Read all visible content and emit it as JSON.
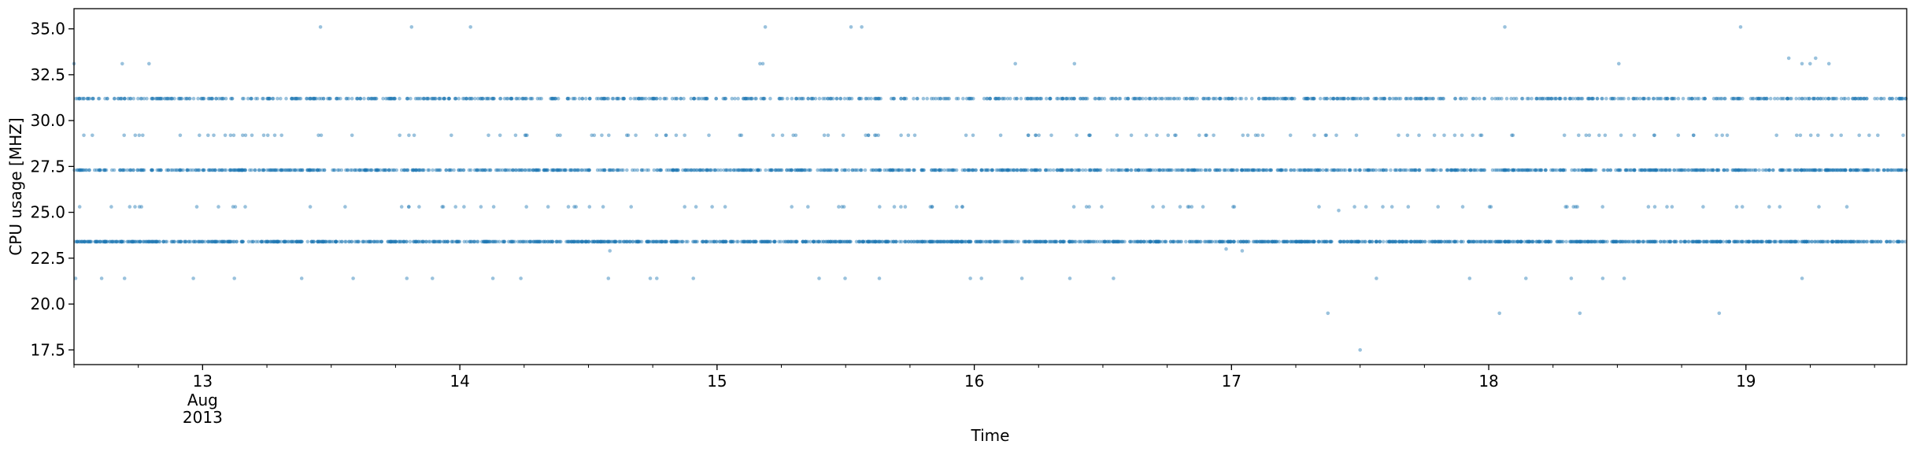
{
  "chart_data": {
    "type": "scatter",
    "title": "",
    "xlabel": "Time",
    "ylabel": "CPU usage [MHZ]",
    "xlim": [
      "2013-08-12T12:00",
      "2013-08-19T15:00"
    ],
    "ylim": [
      16.7,
      36.1
    ],
    "grid": false,
    "legend": "none",
    "marker_color": "#1f77b4",
    "marker_alpha": 0.45,
    "y_ticks": [
      "17.5",
      "20.0",
      "22.5",
      "25.0",
      "27.5",
      "30.0",
      "32.5",
      "35.0"
    ],
    "x_ticks": [
      {
        "t": "2013-08-13T00:00",
        "label": "13",
        "sub": [
          "Aug",
          "2013"
        ]
      },
      {
        "t": "2013-08-14T00:00",
        "label": "14",
        "sub": []
      },
      {
        "t": "2013-08-15T00:00",
        "label": "15",
        "sub": []
      },
      {
        "t": "2013-08-16T00:00",
        "label": "16",
        "sub": []
      },
      {
        "t": "2013-08-17T00:00",
        "label": "17",
        "sub": []
      },
      {
        "t": "2013-08-18T00:00",
        "label": "18",
        "sub": []
      },
      {
        "t": "2013-08-19T00:00",
        "label": "19",
        "sub": []
      }
    ],
    "levels": [
      23.4,
      27.3,
      31.2
    ],
    "sparse_levels": [
      21.4,
      25.3,
      29.2,
      33.1
    ],
    "outliers": [
      {
        "x": "2013-08-13T11:00",
        "y": 35.1
      },
      {
        "x": "2013-08-13T19:30",
        "y": 35.1
      },
      {
        "x": "2013-08-14T01:00",
        "y": 35.1
      },
      {
        "x": "2013-08-15T04:30",
        "y": 35.1
      },
      {
        "x": "2013-08-15T12:30",
        "y": 35.1
      },
      {
        "x": "2013-08-15T13:30",
        "y": 35.1
      },
      {
        "x": "2013-08-18T01:30",
        "y": 35.1
      },
      {
        "x": "2013-08-18T23:30",
        "y": 35.1
      },
      {
        "x": "2013-08-12T12:00",
        "y": 33.1
      },
      {
        "x": "2013-08-12T16:30",
        "y": 33.1
      },
      {
        "x": "2013-08-12T19:00",
        "y": 33.1
      },
      {
        "x": "2013-08-19T04:00",
        "y": 33.4
      },
      {
        "x": "2013-08-19T06:30",
        "y": 33.4
      },
      {
        "x": "2013-08-17T09:00",
        "y": 19.5
      },
      {
        "x": "2013-08-18T01:00",
        "y": 19.5
      },
      {
        "x": "2013-08-18T08:30",
        "y": 19.5
      },
      {
        "x": "2013-08-18T21:30",
        "y": 19.5
      },
      {
        "x": "2013-08-17T12:00",
        "y": 17.5
      },
      {
        "x": "2013-08-14T14:00",
        "y": 22.9
      },
      {
        "x": "2013-08-17T01:00",
        "y": 22.9
      },
      {
        "x": "2013-08-17T10:00",
        "y": 25.1
      },
      {
        "x": "2013-08-16T23:30",
        "y": 23.0
      }
    ]
  }
}
